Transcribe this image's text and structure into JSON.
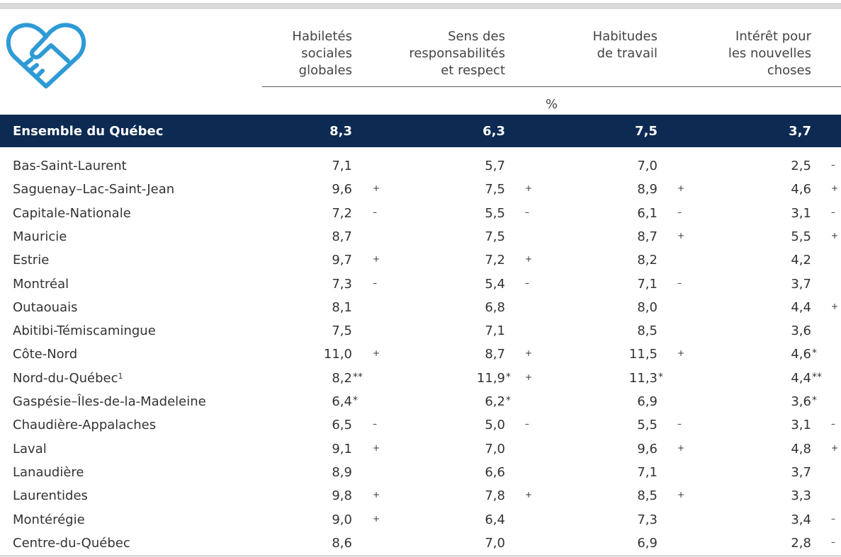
{
  "table": {
    "columns": [
      [
        "Habiletés",
        "sociales",
        "globales"
      ],
      [
        "Sens des",
        "responsabilités",
        "et respect"
      ],
      [
        "Habitudes",
        "de travail"
      ],
      [
        "Intérêt pour",
        "les nouvelles",
        "choses"
      ]
    ],
    "unit": "%",
    "total": {
      "name": "Ensemble du Québec",
      "cells": [
        "8,3",
        "6,3",
        "7,5",
        "3,7"
      ]
    },
    "rows": [
      {
        "name": "Bas-Saint-Laurent",
        "cells": [
          {
            "v": "7,1"
          },
          {
            "v": "5,7"
          },
          {
            "v": "7,0"
          },
          {
            "v": "2,5",
            "s": "–"
          }
        ]
      },
      {
        "name": "Saguenay–Lac-Saint-Jean",
        "cells": [
          {
            "v": "9,6",
            "s": "+"
          },
          {
            "v": "7,5",
            "s": "+"
          },
          {
            "v": "8,9",
            "s": "+"
          },
          {
            "v": "4,6",
            "s": "+"
          }
        ]
      },
      {
        "name": "Capitale-Nationale",
        "cells": [
          {
            "v": "7,2",
            "s": "–"
          },
          {
            "v": "5,5",
            "s": "–"
          },
          {
            "v": "6,1",
            "s": "–"
          },
          {
            "v": "3,1",
            "s": "–"
          }
        ]
      },
      {
        "name": "Mauricie",
        "cells": [
          {
            "v": "8,7"
          },
          {
            "v": "7,5"
          },
          {
            "v": "8,7",
            "s": "+"
          },
          {
            "v": "5,5",
            "s": "+"
          }
        ]
      },
      {
        "name": "Estrie",
        "cells": [
          {
            "v": "9,7",
            "s": "+"
          },
          {
            "v": "7,2",
            "s": "+"
          },
          {
            "v": "8,2"
          },
          {
            "v": "4,2"
          }
        ]
      },
      {
        "name": "Montréal",
        "cells": [
          {
            "v": "7,3",
            "s": "–"
          },
          {
            "v": "5,4",
            "s": "–"
          },
          {
            "v": "7,1",
            "s": "–"
          },
          {
            "v": "3,7"
          }
        ]
      },
      {
        "name": "Outaouais",
        "cells": [
          {
            "v": "8,1"
          },
          {
            "v": "6,8"
          },
          {
            "v": "8,0"
          },
          {
            "v": "4,4",
            "s": "+"
          }
        ]
      },
      {
        "name": "Abitibi-Témiscamingue",
        "cells": [
          {
            "v": "7,5"
          },
          {
            "v": "7,1"
          },
          {
            "v": "8,5"
          },
          {
            "v": "3,6"
          }
        ]
      },
      {
        "name": "Côte-Nord",
        "cells": [
          {
            "v": "11,0",
            "s": "+"
          },
          {
            "v": "8,7",
            "s": "+"
          },
          {
            "v": "11,5",
            "s": "+"
          },
          {
            "v": "4,6",
            "f": "*"
          }
        ]
      },
      {
        "name": "Nord-du-Québec",
        "note": "1",
        "cells": [
          {
            "v": "8,2",
            "f": "**"
          },
          {
            "v": "11,9",
            "f": "*",
            "s": "+"
          },
          {
            "v": "11,3",
            "f": "*"
          },
          {
            "v": "4,4",
            "f": "**"
          }
        ]
      },
      {
        "name": "Gaspésie–Îles-de-la-Madeleine",
        "cells": [
          {
            "v": "6,4",
            "f": "*"
          },
          {
            "v": "6,2",
            "f": "*"
          },
          {
            "v": "6,9"
          },
          {
            "v": "3,6",
            "f": "*"
          }
        ]
      },
      {
        "name": "Chaudière-Appalaches",
        "cells": [
          {
            "v": "6,5",
            "s": "–"
          },
          {
            "v": "5,0",
            "s": "–"
          },
          {
            "v": "5,5",
            "s": "–"
          },
          {
            "v": "3,1",
            "s": "–"
          }
        ]
      },
      {
        "name": "Laval",
        "cells": [
          {
            "v": "9,1",
            "s": "+"
          },
          {
            "v": "7,0"
          },
          {
            "v": "9,6",
            "s": "+"
          },
          {
            "v": "4,8",
            "s": "+"
          }
        ]
      },
      {
        "name": "Lanaudière",
        "cells": [
          {
            "v": "8,9"
          },
          {
            "v": "6,6"
          },
          {
            "v": "7,1"
          },
          {
            "v": "3,7"
          }
        ]
      },
      {
        "name": "Laurentides",
        "cells": [
          {
            "v": "9,8",
            "s": "+"
          },
          {
            "v": "7,8",
            "s": "+"
          },
          {
            "v": "8,5",
            "s": "+"
          },
          {
            "v": "3,3"
          }
        ]
      },
      {
        "name": "Montérégie",
        "cells": [
          {
            "v": "9,0",
            "s": "+"
          },
          {
            "v": "6,4"
          },
          {
            "v": "7,3"
          },
          {
            "v": "3,4",
            "s": "–"
          }
        ]
      },
      {
        "name": "Centre-du-Québec",
        "cells": [
          {
            "v": "8,6"
          },
          {
            "v": "7,0"
          },
          {
            "v": "6,9"
          },
          {
            "v": "2,8",
            "s": "–"
          }
        ]
      }
    ]
  }
}
